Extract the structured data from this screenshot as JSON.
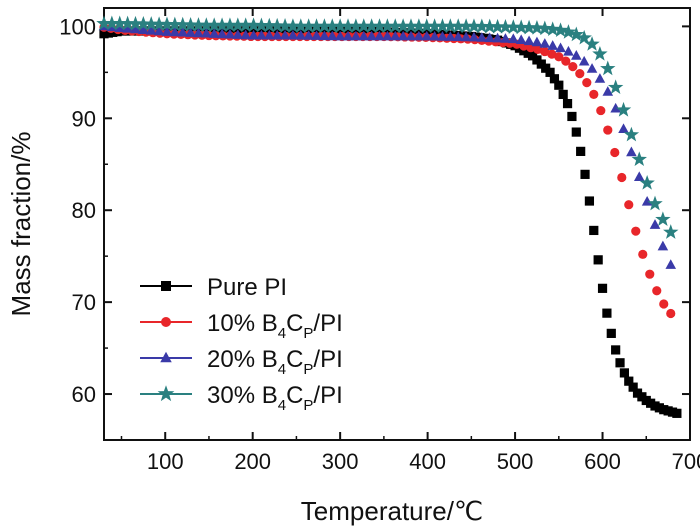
{
  "chart_data": {
    "type": "scatter",
    "title": "",
    "xlabel": "Temperature/℃",
    "ylabel": "Mass fraction/%",
    "xlim": [
      30,
      700
    ],
    "ylim": [
      55,
      102
    ],
    "xticks": [
      100,
      200,
      300,
      400,
      500,
      600,
      700
    ],
    "yticks": [
      60,
      70,
      80,
      90,
      100
    ],
    "legend_position": "bottom-left",
    "series": [
      {
        "name": "Pure PI",
        "label_parts": [
          "Pure PI"
        ],
        "color": "#000000",
        "marker": "square",
        "x": [
          30,
          50,
          100,
          150,
          200,
          250,
          300,
          350,
          400,
          450,
          480,
          500,
          520,
          540,
          550,
          560,
          565,
          570,
          575,
          580,
          585,
          590,
          595,
          600,
          605,
          610,
          615,
          620,
          625,
          630,
          640,
          650,
          660,
          670,
          685
        ],
        "y": [
          99.2,
          99.5,
          99.5,
          99.5,
          99.5,
          99.5,
          99.5,
          99.4,
          99.2,
          98.9,
          98.5,
          97.9,
          96.8,
          95.0,
          93.6,
          91.6,
          90.2,
          88.5,
          86.4,
          83.9,
          81.0,
          77.8,
          74.6,
          71.5,
          68.8,
          66.6,
          64.8,
          63.4,
          62.3,
          61.4,
          60.1,
          59.3,
          58.7,
          58.3,
          57.9
        ]
      },
      {
        "name": "10% B4CP/PI",
        "label_parts": [
          "10% B",
          "4",
          "C",
          "P",
          "/PI"
        ],
        "color": "#e8262a",
        "marker": "circle",
        "x": [
          30,
          50,
          100,
          150,
          200,
          250,
          300,
          350,
          400,
          450,
          500,
          530,
          550,
          560,
          570,
          580,
          590,
          600,
          610,
          620,
          630,
          640,
          650,
          660,
          670,
          680
        ],
        "y": [
          99.9,
          99.6,
          99.2,
          99.0,
          98.9,
          98.9,
          98.9,
          98.9,
          98.8,
          98.6,
          98.1,
          97.4,
          96.7,
          96.1,
          95.3,
          94.2,
          92.6,
          90.4,
          87.6,
          84.3,
          80.6,
          77.0,
          74.0,
          71.6,
          69.8,
          68.5
        ]
      },
      {
        "name": "20% B4CP/PI",
        "label_parts": [
          "20% B",
          "4",
          "C",
          "P",
          "/PI"
        ],
        "color": "#3a3aa8",
        "marker": "triangle",
        "x": [
          30,
          50,
          100,
          150,
          200,
          250,
          300,
          350,
          400,
          450,
          500,
          530,
          550,
          560,
          570,
          580,
          590,
          600,
          610,
          620,
          630,
          640,
          650,
          660,
          670,
          680
        ],
        "y": [
          100.0,
          99.8,
          99.4,
          99.2,
          99.0,
          99.0,
          98.9,
          98.9,
          98.9,
          98.8,
          98.6,
          98.2,
          97.7,
          97.3,
          96.8,
          96.1,
          95.2,
          93.9,
          92.2,
          89.9,
          87.2,
          84.2,
          81.2,
          78.4,
          75.8,
          73.6
        ]
      },
      {
        "name": "30% B4CP/PI",
        "label_parts": [
          "30% B",
          "4",
          "C",
          "P",
          "/PI"
        ],
        "color": "#2a8080",
        "marker": "star",
        "x": [
          30,
          50,
          100,
          150,
          200,
          250,
          300,
          350,
          400,
          450,
          500,
          530,
          550,
          560,
          570,
          580,
          590,
          600,
          610,
          620,
          630,
          640,
          650,
          660,
          670,
          680
        ],
        "y": [
          100.3,
          100.3,
          100.2,
          100.1,
          100.1,
          100.0,
          100.0,
          100.0,
          100.0,
          100.0,
          99.9,
          99.8,
          99.6,
          99.4,
          99.1,
          98.7,
          97.9,
          96.6,
          94.6,
          92.1,
          89.1,
          86.1,
          83.2,
          80.7,
          78.8,
          77.3
        ]
      }
    ]
  }
}
